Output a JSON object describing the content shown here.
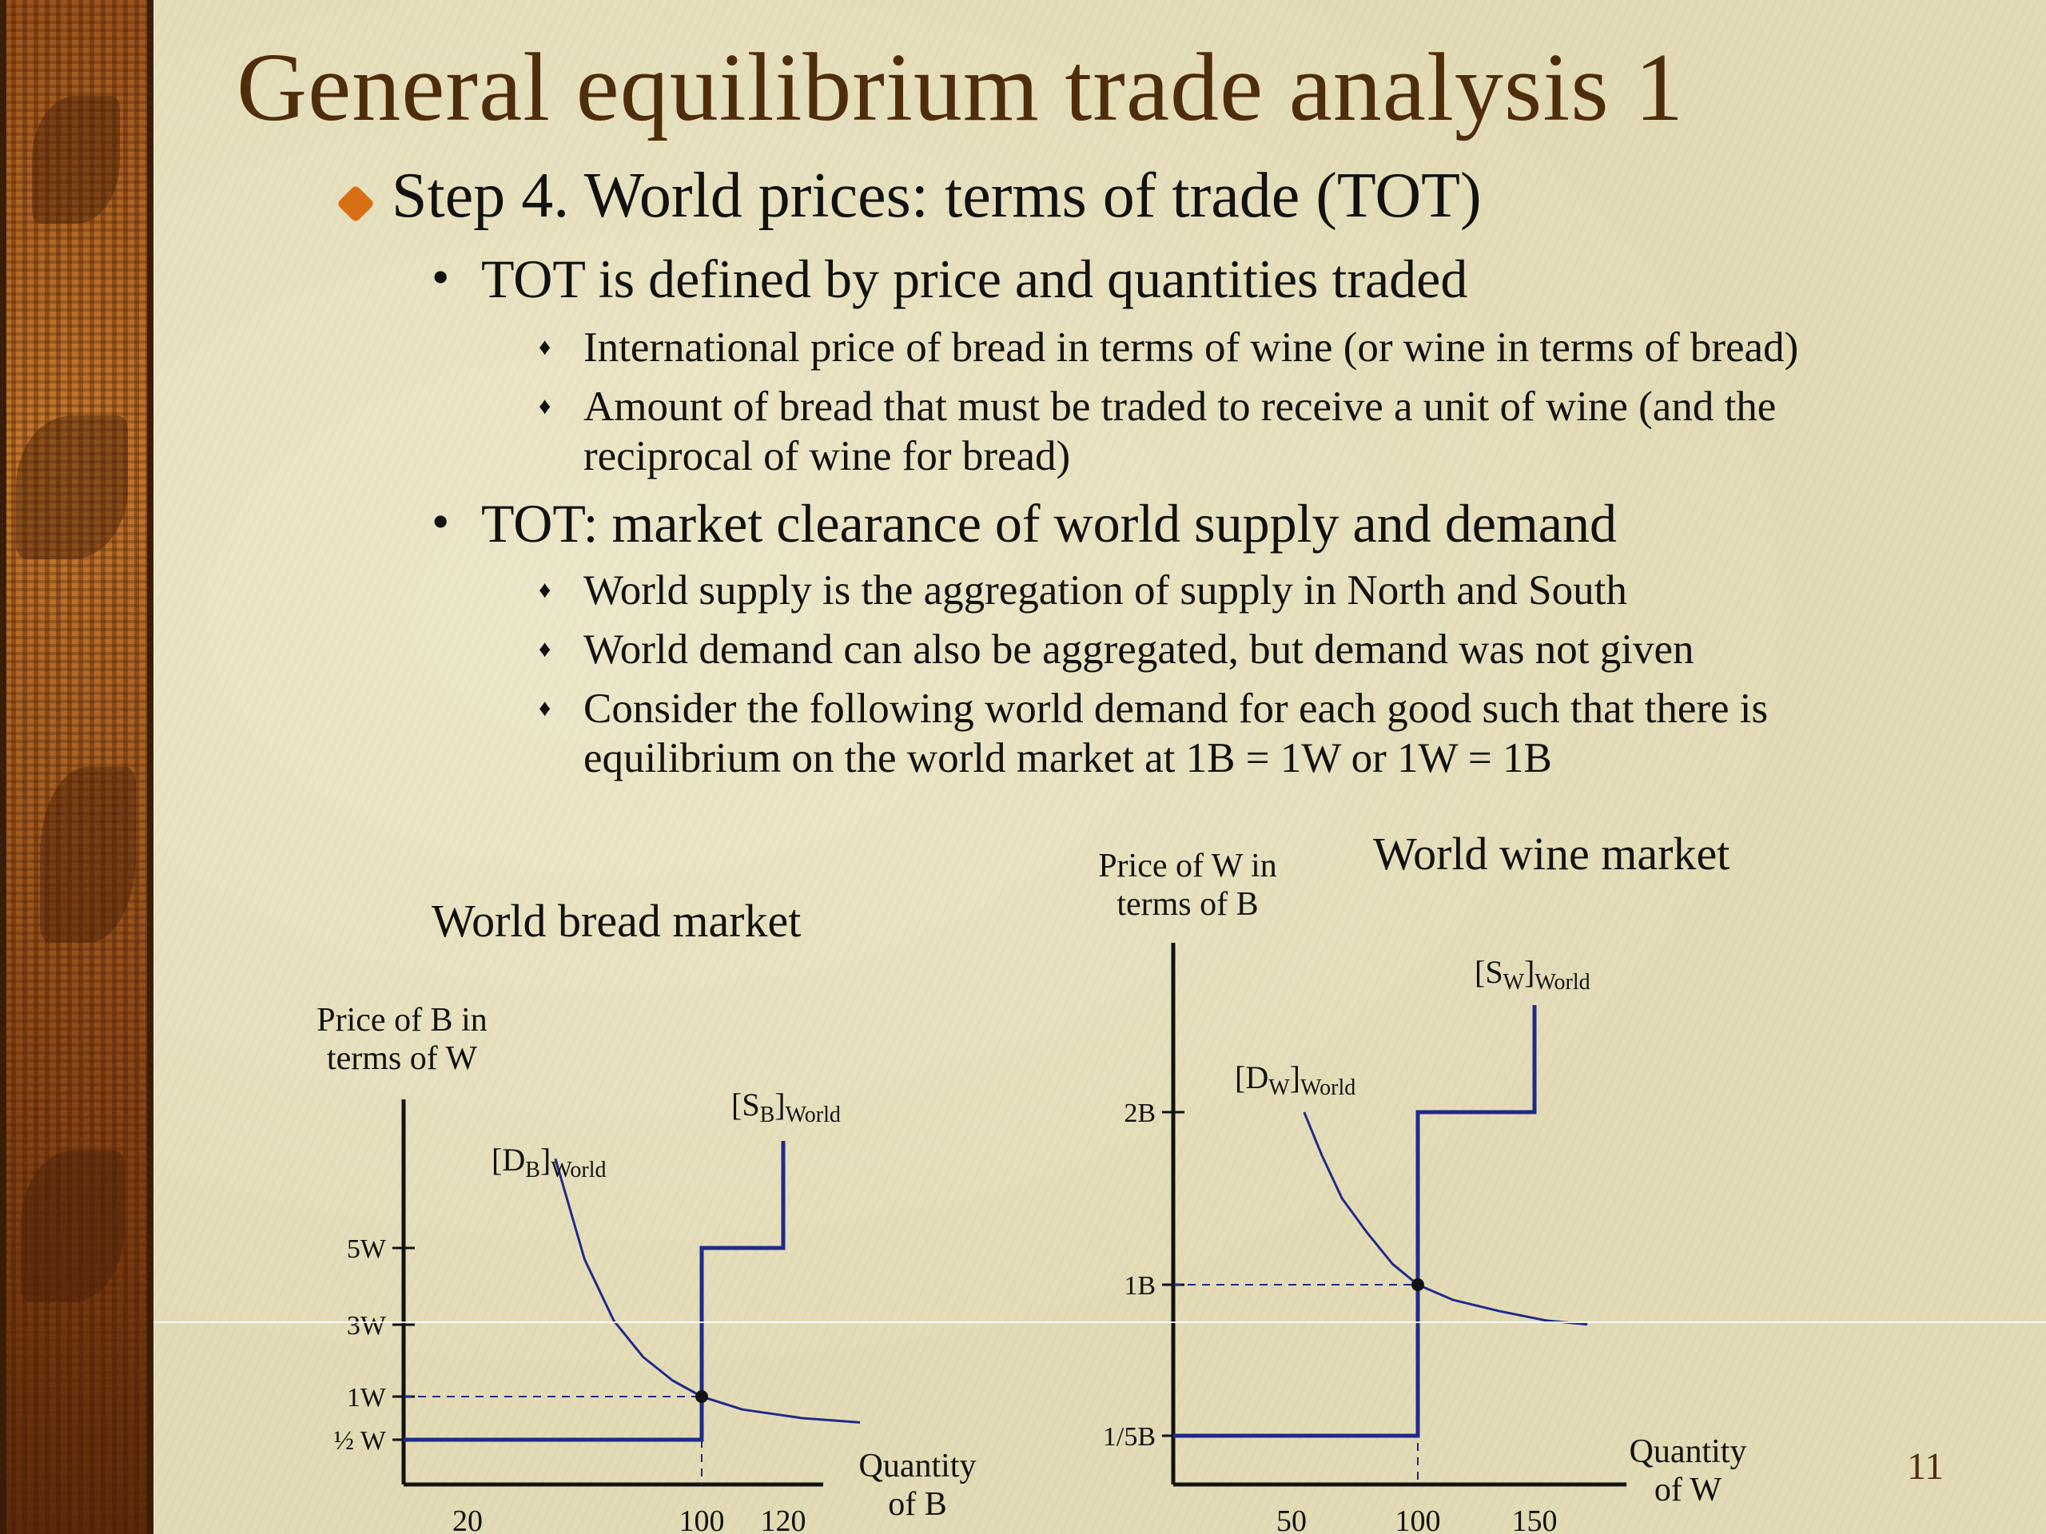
{
  "slide": {
    "title": "General equilibrium trade analysis 1",
    "page_number": "11"
  },
  "bullets": {
    "step": "Step 4. World prices: terms of trade (TOT)",
    "b1": "TOT is defined by price and quantities traded",
    "b1_sub1": "International price of bread in terms of wine (or wine in terms of bread)",
    "b1_sub2_line1": "Amount of bread that must be traded to receive a unit of wine (and the",
    "b1_sub2_line2": "reciprocal of wine for bread)",
    "b2": "TOT: market clearance of world supply and demand",
    "b2_sub1": "World supply is the aggregation of supply in North and South",
    "b2_sub2": "World demand can also be aggregated, but demand was not given",
    "b2_sub3_line1": "Consider the following world demand for each good such that there is",
    "b2_sub3_line2": "equilibrium on the world market at 1B = 1W or 1W = 1B"
  },
  "colors": {
    "curve": "#1f2a8a",
    "title": "#4f2d0b",
    "bullet": "#d86f15"
  },
  "chart_data": [
    {
      "type": "line",
      "title": "World bread market",
      "ylabel_line1": "Price of B in",
      "ylabel_line2": "terms of W",
      "xlabel_line1": "Quantity",
      "xlabel_line2": "of B",
      "ytick_labels": [
        "½ W",
        "1W",
        "3W",
        "5W"
      ],
      "ytick_values": [
        0.5,
        1,
        3,
        5
      ],
      "xtick_labels": [
        "20",
        "100",
        "120"
      ],
      "xtick_values": [
        20,
        100,
        120
      ],
      "series": [
        {
          "name_main": "[S",
          "name_sub": "B",
          "name_suffix": "]",
          "name_sub2": "World",
          "kind": "supply-step",
          "x": [
            0,
            100,
            100,
            120,
            120
          ],
          "y": [
            0.5,
            0.5,
            5,
            5,
            8
          ]
        },
        {
          "name_main": "[D",
          "name_sub": "B",
          "name_suffix": "]",
          "name_sub2": "World",
          "kind": "demand-curve",
          "x": [
            50,
            60,
            70,
            80,
            90,
            100,
            110,
            125,
            140
          ],
          "y": [
            7.5,
            4.7,
            3.1,
            2.1,
            1.45,
            1.0,
            0.85,
            0.75,
            0.7
          ]
        }
      ],
      "equilibrium": {
        "x": 100,
        "y": 1
      }
    },
    {
      "type": "line",
      "title": "World wine market",
      "ylabel_line1": "Price of W in",
      "ylabel_line2": "terms of B",
      "xlabel_line1": "Quantity",
      "xlabel_line2": "of W",
      "ytick_labels": [
        "1/5B",
        "1B",
        "2B"
      ],
      "ytick_values": [
        0.2,
        1,
        2
      ],
      "xtick_labels": [
        "50",
        "100",
        "150"
      ],
      "xtick_values": [
        50,
        100,
        150
      ],
      "series": [
        {
          "name_main": "[S",
          "name_sub": "W",
          "name_suffix": "]",
          "name_sub2": "World",
          "kind": "supply-step",
          "x": [
            0,
            100,
            100,
            150,
            150
          ],
          "y": [
            0.2,
            0.2,
            2,
            2,
            2.5
          ]
        },
        {
          "name_main": "[D",
          "name_sub": "W",
          "name_suffix": "]",
          "name_sub2": "World",
          "kind": "demand-curve",
          "x": [
            55,
            62,
            70,
            80,
            90,
            100,
            115,
            135,
            155,
            172
          ],
          "y": [
            2.0,
            1.75,
            1.5,
            1.3,
            1.12,
            1.0,
            0.92,
            0.86,
            0.81,
            0.79
          ]
        }
      ],
      "equilibrium": {
        "x": 100,
        "y": 1
      }
    }
  ]
}
